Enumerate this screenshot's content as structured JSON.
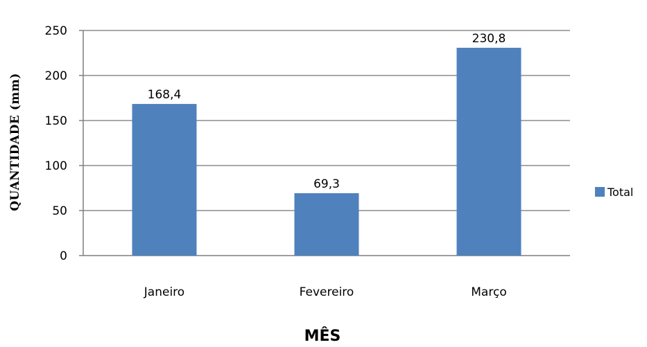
{
  "chart_data": {
    "type": "bar",
    "categories": [
      "Janeiro",
      "Fevereiro",
      "Março"
    ],
    "series": [
      {
        "name": "Total",
        "values": [
          168.4,
          69.3,
          230.8
        ],
        "color": "#4f81bd"
      }
    ],
    "data_labels": [
      "168,4",
      "69,3",
      "230,8"
    ],
    "xlabel": "MÊS",
    "ylabel": "QUANTIDADE (mm)",
    "ylim": [
      0,
      250
    ],
    "yticks": [
      0,
      50,
      100,
      150,
      200,
      250
    ],
    "ytick_labels": [
      "0",
      "50",
      "100",
      "150",
      "200",
      "250"
    ],
    "grid": true,
    "legend_position": "right",
    "legend_label": "Total"
  }
}
